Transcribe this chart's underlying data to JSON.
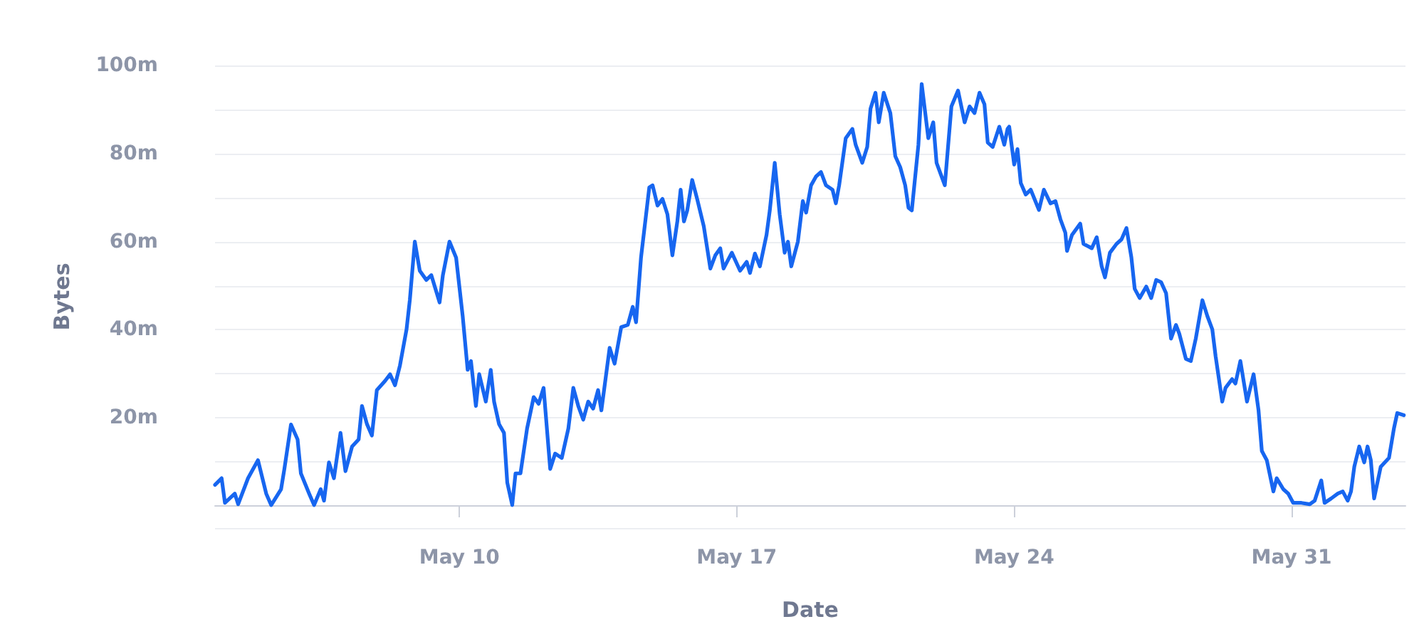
{
  "chart_data": {
    "type": "line",
    "xlabel": "Date",
    "ylabel": "Bytes",
    "x": [
      "--05-03T20:00",
      "--05-04T00:00",
      "--05-04T02:00",
      "--05-04T08:00",
      "--05-04T10:00",
      "--05-04T16:00",
      "--05-04T22:00",
      "--05-05T03:00",
      "--05-05T06:00",
      "--05-05T12:00",
      "--05-05T14:00",
      "--05-05T18:00",
      "--05-05T22:00",
      "--05-06T00:00",
      "--05-06T05:00",
      "--05-06T08:00",
      "--05-06T12:00",
      "--05-06T14:00",
      "--05-06T17:00",
      "--05-06T20:00",
      "--05-07T00:00",
      "--05-07T03:00",
      "--05-07T07:00",
      "--05-07T11:00",
      "--05-07T13:00",
      "--05-07T16:00",
      "--05-07T19:00",
      "--05-07T22:00",
      "--05-08T03:00",
      "--05-08T06:00",
      "--05-08T09:00",
      "--05-08T12:00",
      "--05-08T16:00",
      "--05-08T18:00",
      "--05-08T21:00",
      "--05-09T00:00",
      "--05-09T04:00",
      "--05-09T07:00",
      "--05-09T12:00",
      "--05-09T14:00",
      "--05-09T18:00",
      "--05-09T22:00",
      "--05-10T02:00",
      "--05-10T05:00",
      "--05-10T07:00",
      "--05-10T10:00",
      "--05-10T12:00",
      "--05-10T16:00",
      "--05-10T19:00",
      "--05-10T21:00",
      "--05-11T00:00",
      "--05-11T03:00",
      "--05-11T05:00",
      "--05-11T08:00",
      "--05-11T10:00",
      "--05-11T13:00",
      "--05-11T17:00",
      "--05-11T21:00",
      "--05-12T00:00",
      "--05-12T03:00",
      "--05-12T07:00",
      "--05-12T10:00",
      "--05-12T14:00",
      "--05-12T18:00",
      "--05-12T21:00",
      "--05-13T00:00",
      "--05-13T03:00",
      "--05-13T06:00",
      "--05-13T09:00",
      "--05-13T12:00",
      "--05-13T14:00",
      "--05-13T19:00",
      "--05-13T22:00",
      "--05-14T02:00",
      "--05-14T06:00",
      "--05-14T09:00",
      "--05-14T11:00",
      "--05-14T14:00",
      "--05-14T19:00",
      "--05-14T21:00",
      "--05-15T00:00",
      "--05-15T03:00",
      "--05-15T06:00",
      "--05-15T09:00",
      "--05-15T12:00",
      "--05-15T14:00",
      "--05-15T16:00",
      "--05-15T18:00",
      "--05-15T21:00",
      "--05-16T00:00",
      "--05-16T04:00",
      "--05-16T08:00",
      "--05-16T11:00",
      "--05-16T14:00",
      "--05-16T16:00",
      "--05-16T21:00",
      "--05-17T02:00",
      "--05-17T06:00",
      "--05-17T08:00",
      "--05-17T11:00",
      "--05-17T14:00",
      "--05-17T18:00",
      "--05-17T20:00",
      "--05-17T23:00",
      "--05-18T02:00",
      "--05-18T05:00",
      "--05-18T07:00",
      "--05-18T09:00",
      "--05-18T13:00",
      "--05-18T16:00",
      "--05-18T18:00",
      "--05-18T21:00",
      "--05-19T00:00",
      "--05-19T03:00",
      "--05-19T06:00",
      "--05-19T10:00",
      "--05-19T12:00",
      "--05-19T14:00",
      "--05-19T18:00",
      "--05-19T22:00",
      "--05-20T00:00",
      "--05-20T04:00",
      "--05-20T07:00",
      "--05-20T09:00",
      "--05-20T12:00",
      "--05-20T14:00",
      "--05-20T17:00",
      "--05-20T21:00",
      "--05-21T00:00",
      "--05-21T03:00",
      "--05-21T06:00",
      "--05-21T08:00",
      "--05-21T10:00",
      "--05-21T14:00",
      "--05-21T16:00",
      "--05-21T20:00",
      "--05-21T23:00",
      "--05-22T01:00",
      "--05-22T06:00",
      "--05-22T10:00",
      "--05-22T14:00",
      "--05-22T18:00",
      "--05-22T21:00",
      "--05-23T00:00",
      "--05-23T03:00",
      "--05-23T06:00",
      "--05-23T08:00",
      "--05-23T11:00",
      "--05-23T15:00",
      "--05-23T18:00",
      "--05-23T20:00",
      "--05-23T21:00",
      "--05-24T00:00",
      "--05-24T02:00",
      "--05-24T04:00",
      "--05-24T07:00",
      "--05-24T10:00",
      "--05-24T15:00",
      "--05-24T18:00",
      "--05-24T22:00",
      "--05-25T01:00",
      "--05-25T04:00",
      "--05-25T07:00",
      "--05-25T08:00",
      "--05-25T11:00",
      "--05-25T16:00",
      "--05-25T18:00",
      "--05-25T23:00",
      "--05-26T02:00",
      "--05-26T05:00",
      "--05-26T07:00",
      "--05-26T10:00",
      "--05-26T14:00",
      "--05-26T17:00",
      "--05-26T20:00",
      "--05-26T23:00",
      "--05-27T01:00",
      "--05-27T04:00",
      "--05-27T08:00",
      "--05-27T11:00",
      "--05-27T14:00",
      "--05-27T17:00",
      "--05-27T20:00",
      "--05-27T23:00",
      "--05-28T02:00",
      "--05-28T04:00",
      "--05-28T08:00",
      "--05-28T11:00",
      "--05-28T14:00",
      "--05-28T18:00",
      "--05-28T21:00",
      "--05-29T00:00",
      "--05-29T02:00",
      "--05-29T06:00",
      "--05-29T08:00",
      "--05-29T12:00",
      "--05-29T14:00",
      "--05-29T17:00",
      "--05-29T21:00",
      "--05-30T01:00",
      "--05-30T04:00",
      "--05-30T06:00",
      "--05-30T09:00",
      "--05-30T13:00",
      "--05-30T15:00",
      "--05-30T19:00",
      "--05-30T22:00",
      "--05-31T01:00",
      "--05-31T06:00",
      "--05-31T11:00",
      "--05-31T14:00",
      "--05-31T18:00",
      "--05-31T20:00",
      "--06-01T00:00",
      "--06-01T04:00",
      "--06-01T07:00",
      "--06-01T10:00",
      "--06-01T12:00",
      "--06-01T14:00",
      "--06-01T17:00",
      "--06-01T20:00",
      "--06-01T22:00",
      "--06-02T00:00",
      "--06-02T02:00",
      "--06-02T06:00",
      "--06-02T11:00",
      "--06-02T14:00",
      "--06-02T16:00",
      "--06-02T20:00"
    ],
    "series": [
      {
        "color": "#1766f0",
        "values": [
          4.8,
          6.3,
          0.7,
          2.8,
          0.4,
          6.3,
          10.4,
          2.8,
          0.2,
          3.8,
          8.4,
          18.5,
          15.1,
          7.4,
          2.8,
          0.2,
          3.8,
          1.2,
          9.9,
          6.3,
          16.6,
          7.9,
          13.5,
          15.1,
          22.7,
          18.6,
          16.0,
          26.3,
          28.4,
          29.9,
          27.4,
          31.9,
          40.1,
          46.8,
          60.0,
          53.4,
          51.3,
          52.4,
          46.2,
          52.4,
          60.0,
          56.4,
          43.1,
          30.9,
          32.9,
          22.7,
          29.9,
          23.7,
          30.9,
          23.7,
          18.6,
          16.6,
          5.3,
          0.2,
          7.4,
          7.4,
          17.6,
          24.7,
          23.2,
          26.8,
          8.4,
          11.9,
          10.9,
          17.6,
          26.8,
          22.7,
          19.6,
          23.7,
          22.1,
          26.3,
          21.7,
          35.9,
          32.3,
          40.6,
          41.1,
          45.2,
          41.7,
          56.4,
          72.3,
          72.8,
          68.2,
          69.7,
          66.2,
          56.9,
          64.6,
          71.8,
          64.6,
          67.1,
          74.0,
          69.7,
          63.5,
          53.9,
          56.9,
          58.5,
          53.9,
          57.5,
          53.4,
          55.4,
          52.9,
          57.3,
          54.4,
          61.5,
          67.1,
          77.9,
          66.2,
          57.5,
          60.0,
          54.4,
          60.0,
          69.2,
          66.6,
          72.8,
          74.8,
          75.8,
          72.8,
          71.8,
          68.7,
          72.8,
          83.5,
          85.6,
          82.0,
          77.9,
          81.5,
          90.2,
          93.8,
          87.1,
          93.8,
          89.2,
          79.4,
          76.9,
          72.8,
          67.7,
          67.1,
          82.0,
          95.8,
          83.5,
          87.1,
          77.9,
          72.8,
          90.7,
          94.3,
          87.1,
          90.7,
          89.2,
          93.8,
          91.2,
          82.5,
          81.5,
          86.1,
          82.0,
          85.6,
          86.1,
          77.5,
          81.0,
          73.3,
          70.7,
          71.8,
          67.2,
          71.8,
          68.7,
          69.2,
          65.1,
          62.0,
          57.9,
          61.5,
          64.1,
          59.5,
          58.5,
          61.0,
          54.4,
          51.9,
          57.5,
          59.5,
          60.5,
          63.1,
          56.4,
          49.3,
          47.2,
          49.8,
          47.2,
          51.3,
          50.8,
          48.3,
          38.0,
          41.1,
          39.1,
          33.4,
          32.9,
          38.0,
          46.7,
          43.1,
          40.1,
          34.0,
          23.7,
          26.8,
          28.8,
          27.8,
          32.9,
          23.7,
          29.9,
          21.7,
          12.5,
          10.4,
          3.3,
          6.3,
          3.8,
          2.8,
          0.7,
          0.7,
          0.4,
          1.2,
          5.8,
          0.7,
          1.7,
          2.8,
          3.3,
          1.2,
          3.3,
          8.9,
          13.5,
          9.9,
          13.5,
          10.4,
          1.7,
          8.9,
          10.9,
          17.6,
          21.1,
          20.6
        ]
      }
    ],
    "xlim": [
      "--05-03T20:00",
      "--06-02T21:00"
    ],
    "xticks": [
      {
        "value": "--05-10",
        "label": "May 10"
      },
      {
        "value": "--05-17",
        "label": "May 17"
      },
      {
        "value": "--05-24",
        "label": "May 24"
      },
      {
        "value": "--05-31",
        "label": "May 31"
      }
    ],
    "ylim": [
      -5,
      100
    ],
    "yticks": [
      {
        "value": 0,
        "label": null
      },
      {
        "value": 10,
        "label": null
      },
      {
        "value": 20,
        "label": "20m"
      },
      {
        "value": 30,
        "label": null
      },
      {
        "value": 40,
        "label": "40m"
      },
      {
        "value": 50,
        "label": null
      },
      {
        "value": 60,
        "label": "60m"
      },
      {
        "value": 70,
        "label": null
      },
      {
        "value": 80,
        "label": "80m"
      },
      {
        "value": 90,
        "label": null
      },
      {
        "value": 100,
        "label": "100m"
      }
    ],
    "grid": "y",
    "marker": "none",
    "line_style": "solid"
  }
}
